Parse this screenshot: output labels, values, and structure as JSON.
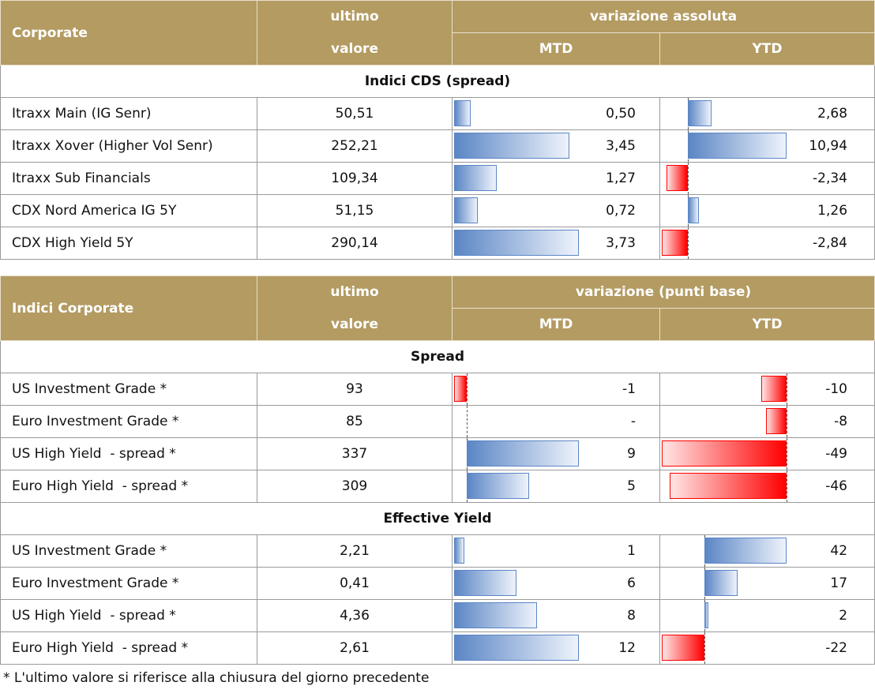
{
  "tables": [
    {
      "header": {
        "name": "Corporate",
        "last_top": "ultimo",
        "last_bottom": "valore",
        "change": "variazione assoluta",
        "mtd": "MTD",
        "ytd": "YTD"
      },
      "sections": [
        {
          "title": "Indici CDS (spread)",
          "rows": [
            [
              "Itraxx Main (IG Senr)",
              "50,51",
              "0,50",
              "2,68"
            ],
            [
              "Itraxx Xover (Higher Vol Senr)",
              "252,21",
              "3,45",
              "10,94"
            ],
            [
              "Itraxx Sub Financials",
              "109,34",
              "1,27",
              "-2,34"
            ],
            [
              "CDX Nord America IG 5Y",
              "51,15",
              "0,72",
              "1,26"
            ],
            [
              "CDX High Yield 5Y",
              "290,14",
              "3,73",
              "-2,84"
            ]
          ]
        }
      ]
    },
    {
      "header": {
        "name": "Indici Corporate",
        "last_top": "ultimo",
        "last_bottom": "valore",
        "change": "variazione (punti base)",
        "mtd": "MTD",
        "ytd": "YTD"
      },
      "sections": [
        {
          "title": "Spread",
          "rows": [
            [
              "US Investment Grade *",
              "93",
              "-1",
              "-10"
            ],
            [
              "Euro Investment Grade *",
              "85",
              "-",
              "-8"
            ],
            [
              "US High Yield  - spread *",
              "337",
              "9",
              "-49"
            ],
            [
              "Euro High Yield  - spread *",
              "309",
              "5",
              "-46"
            ]
          ]
        },
        {
          "title": "Effective Yield",
          "rows": [
            [
              "US Investment Grade *",
              "2,21",
              "1",
              "42"
            ],
            [
              "Euro Investment Grade *",
              "0,41",
              "6",
              "17"
            ],
            [
              "US High Yield  - spread *",
              "4,36",
              "8",
              "2"
            ],
            [
              "Euro High Yield  - spread *",
              "2,61",
              "12",
              "-22"
            ]
          ]
        }
      ]
    }
  ],
  "footnote": "* L'ultimo valore si riferisce alla chiusura del giorno precedente"
}
